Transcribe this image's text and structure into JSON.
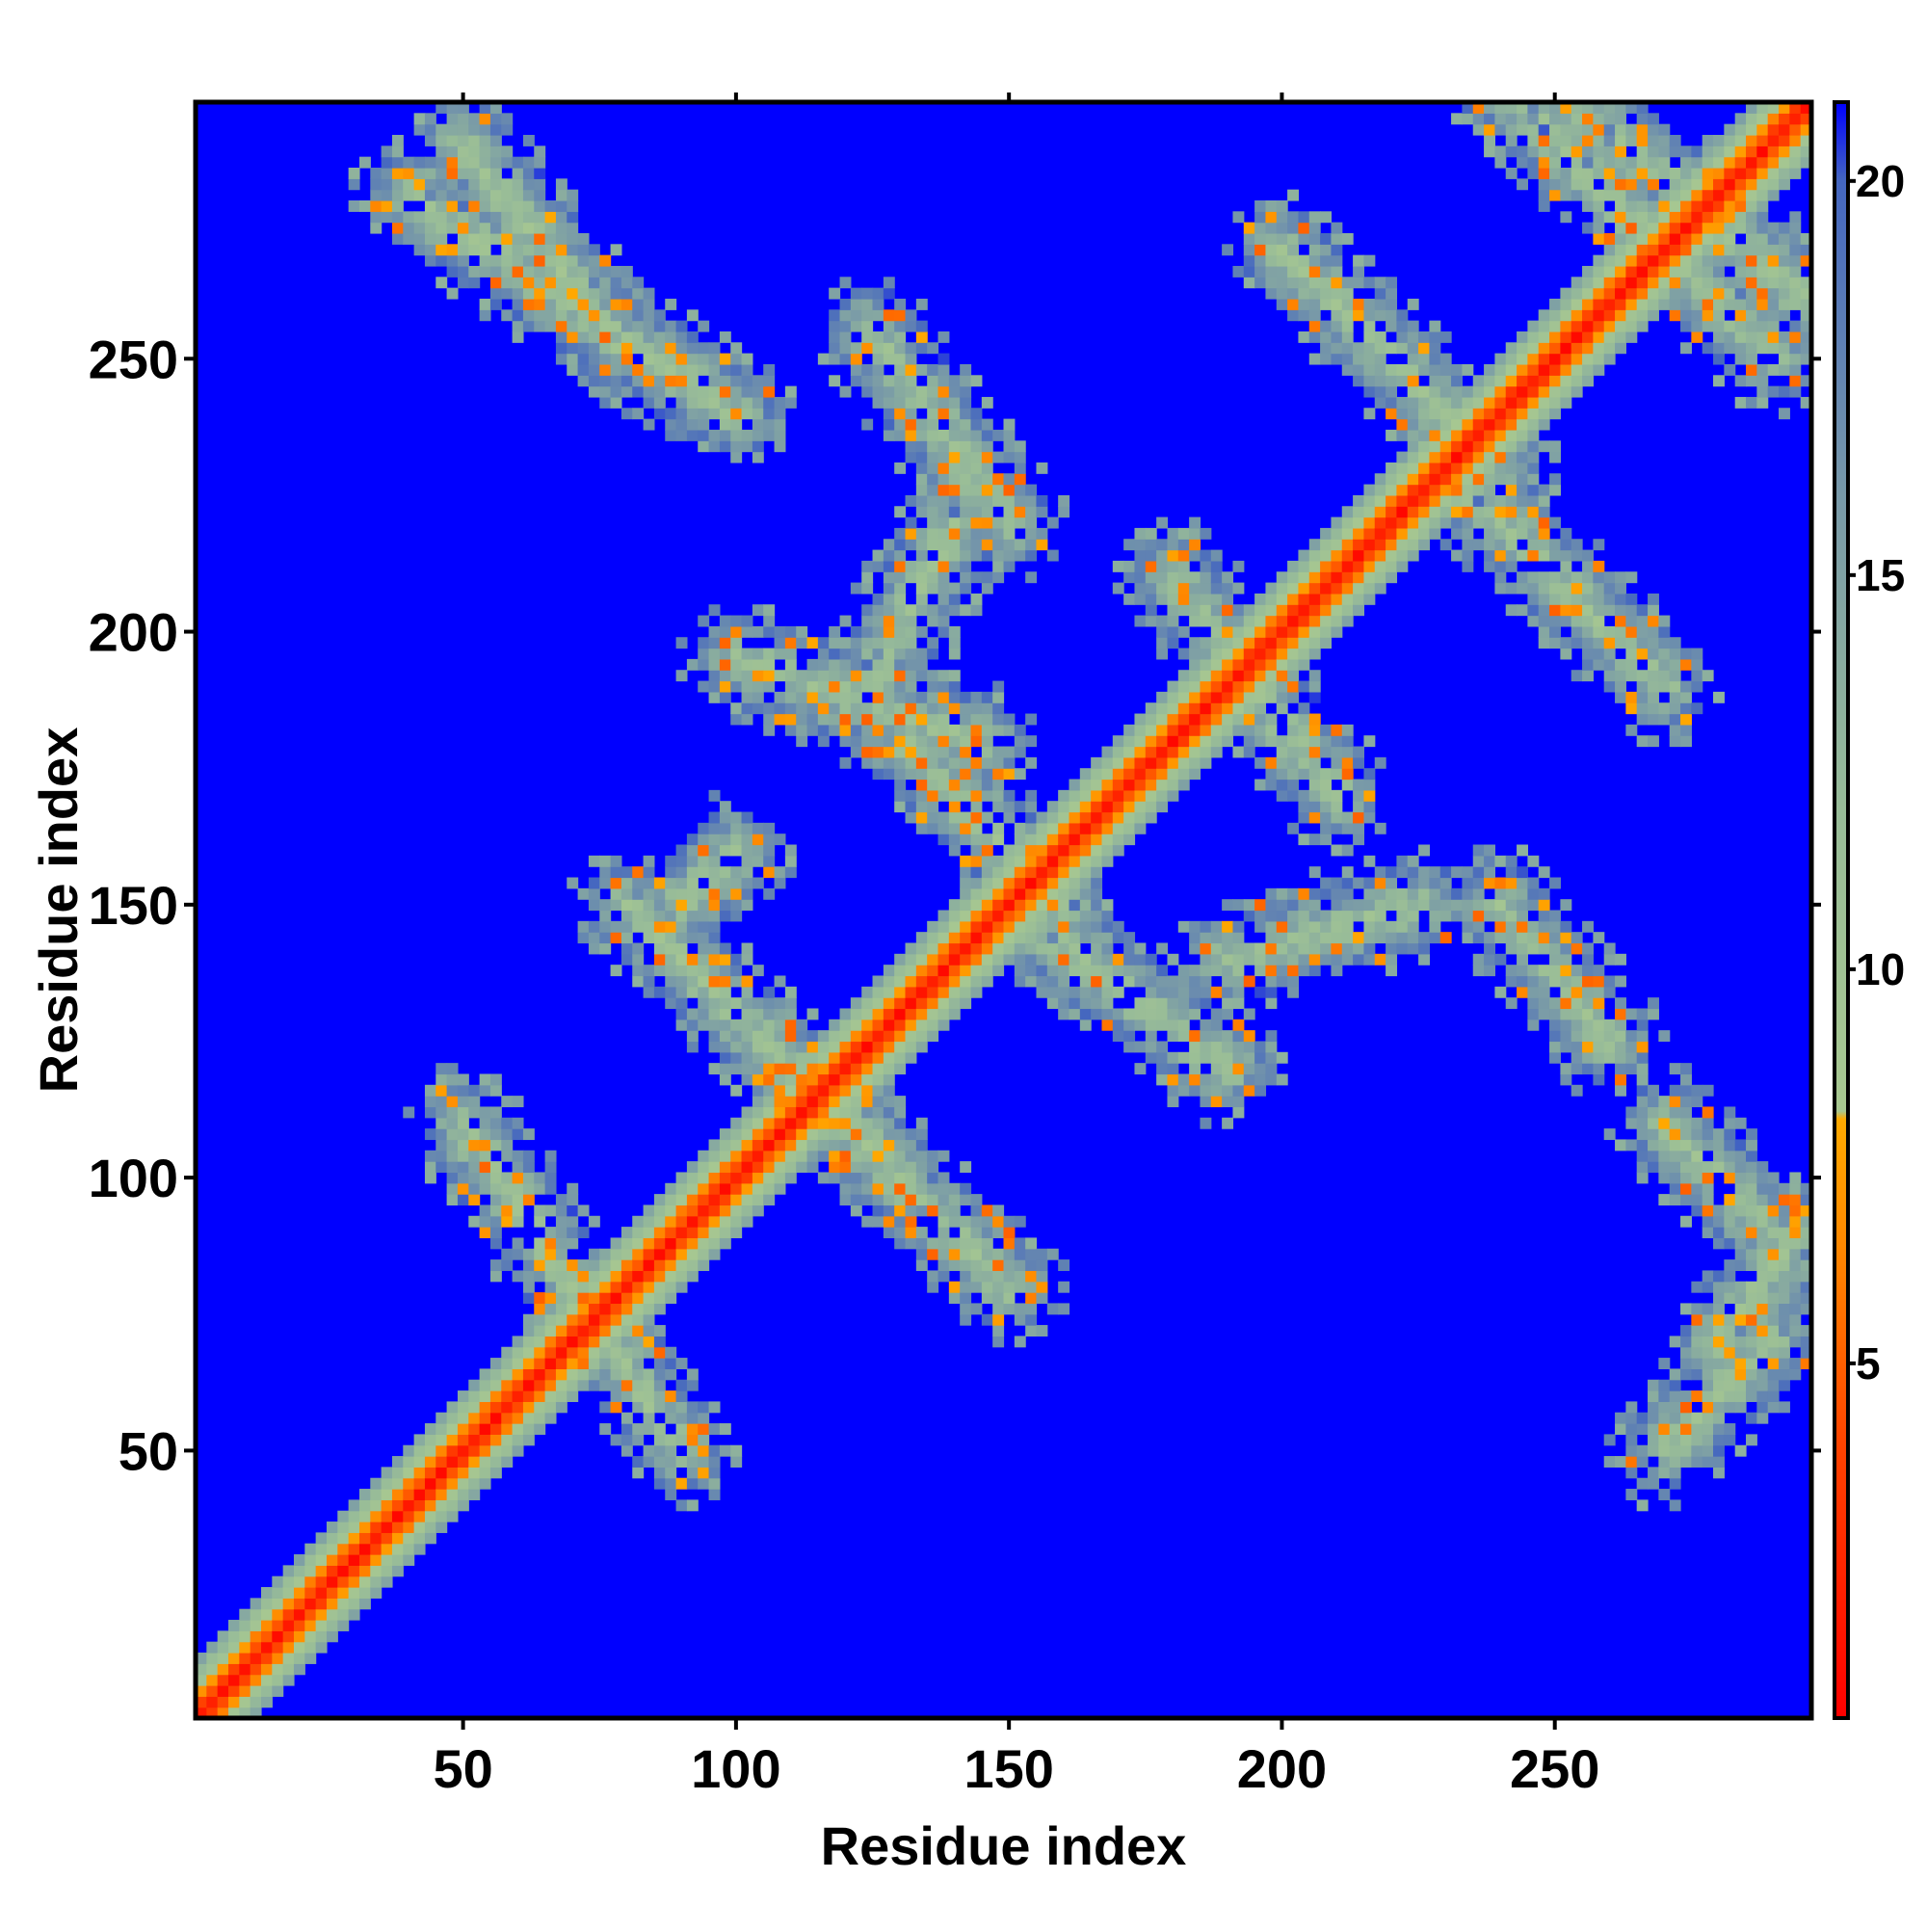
{
  "chart_data": {
    "type": "heatmap",
    "title": "",
    "xlabel": "Residue index",
    "ylabel": "Residue index",
    "xlim": [
      1,
      297
    ],
    "ylim": [
      1,
      297
    ],
    "x_ticks": [
      50,
      100,
      150,
      200,
      250
    ],
    "y_ticks": [
      50,
      100,
      150,
      200,
      250
    ],
    "x_tick_labels": [
      "50",
      "100",
      "150",
      "200",
      "250"
    ],
    "y_tick_labels": [
      "50",
      "100",
      "150",
      "200",
      "250"
    ],
    "grid": false,
    "colorbar": {
      "range": [
        0.5,
        21
      ],
      "ticks": [
        5,
        10,
        15,
        20
      ],
      "tick_labels": [
        "5",
        "10",
        "15",
        "20"
      ],
      "stops": [
        {
          "value": 0.5,
          "color": "#ff0000"
        },
        {
          "value": 4,
          "color": "#ff4400"
        },
        {
          "value": 6.5,
          "color": "#ff8800"
        },
        {
          "value": 8.1,
          "color": "#ffaa00"
        },
        {
          "value": 8.2,
          "color": "#a8c890"
        },
        {
          "value": 12,
          "color": "#98bc98"
        },
        {
          "value": 16,
          "color": "#7899a8"
        },
        {
          "value": 20,
          "color": "#4466c0"
        },
        {
          "value": 21,
          "color": "#0000ff"
        }
      ]
    },
    "background_value": 21,
    "background_color": "#0000ff",
    "diagonal_bands": [
      {
        "segments": [
          [
            1,
            297
          ]
        ],
        "type": "main-diagonal"
      }
    ],
    "antidiagonal_bands": [
      {
        "start": [
          50,
          110
        ],
        "end": [
          90,
          50
        ]
      },
      {
        "start": [
          80,
          150
        ],
        "end": [
          130,
          100
        ]
      },
      {
        "start": [
          110,
          120
        ],
        "end": [
          150,
          80
        ]
      },
      {
        "start": [
          130,
          180
        ],
        "end": [
          160,
          150
        ]
      },
      {
        "start": [
          150,
          150
        ],
        "end": [
          190,
          120
        ]
      },
      {
        "start": [
          180,
          210
        ],
        "end": [
          210,
          170
        ]
      },
      {
        "start": [
          200,
          270
        ],
        "end": [
          240,
          230
        ]
      },
      {
        "start": [
          230,
          230
        ],
        "end": [
          270,
          190
        ]
      },
      {
        "start": [
          240,
          300
        ],
        "end": [
          290,
          250
        ]
      },
      {
        "start": [
          250,
          300
        ],
        "end": [
          297,
          260
        ]
      },
      {
        "start": [
          50,
          290
        ],
        "end": [
          80,
          250
        ]
      },
      {
        "start": [
          40,
          280
        ],
        "end": [
          100,
          240
        ]
      },
      {
        "start": [
          125,
          255
        ],
        "end": [
          150,
          220
        ]
      },
      {
        "start": [
          140,
          220
        ],
        "end": [
          125,
          190
        ]
      },
      {
        "start": [
          100,
          195
        ],
        "end": [
          145,
          180
        ]
      },
      {
        "start": [
          100,
          160
        ],
        "end": [
          90,
          150
        ]
      },
      {
        "start": [
          190,
          140
        ],
        "end": [
          225,
          150
        ]
      },
      {
        "start": [
          240,
          150
        ],
        "end": [
          260,
          125
        ]
      },
      {
        "start": [
          270,
          110
        ],
        "end": [
          290,
          90
        ]
      },
      {
        "start": [
          280,
          70
        ],
        "end": [
          295,
          90
        ]
      },
      {
        "start": [
          270,
          50
        ],
        "end": [
          290,
          70
        ]
      }
    ]
  }
}
